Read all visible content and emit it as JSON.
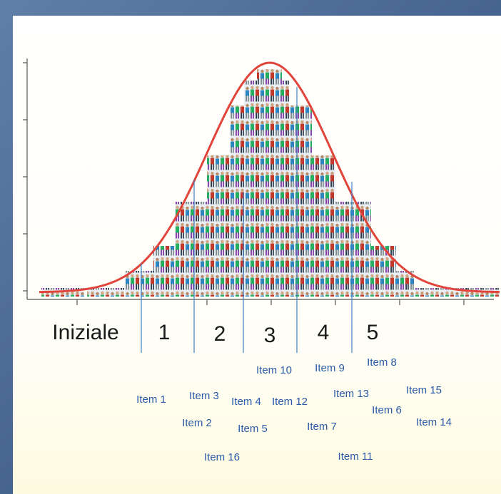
{
  "levels": [
    "Iniziale",
    "1",
    "2",
    "3",
    "4",
    "5"
  ],
  "items": [
    "Item 1",
    "Item 2",
    "Item 3",
    "Item 4",
    "Item 5",
    "Item 6",
    "Item 7",
    "Item 8",
    "Item 9",
    "Item 10",
    "Item 11",
    "Item 12",
    "Item 13",
    "Item 14",
    "Item 15",
    "Item 16"
  ]
}
